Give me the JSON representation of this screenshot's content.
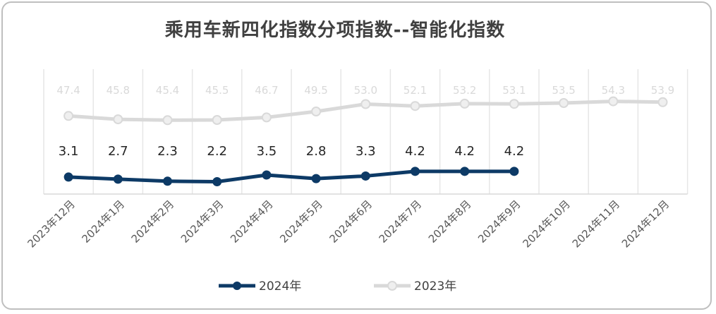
{
  "chart_data": {
    "type": "line",
    "title": "乘用车新四化指数分项指数--智能化指数",
    "categories": [
      "2023年12月",
      "2024年1月",
      "2024年2月",
      "2024年3月",
      "2024年4月",
      "2024年5月",
      "2024年6月",
      "2024年7月",
      "2024年8月",
      "2024年9月",
      "2024年10月",
      "2024年11月",
      "2024年12月"
    ],
    "series": [
      {
        "name": "2024年",
        "values": [
          3.1,
          2.7,
          2.3,
          2.2,
          3.5,
          2.8,
          3.3,
          4.2,
          4.2,
          4.2,
          null,
          null,
          null
        ],
        "color": "#0d3a66"
      },
      {
        "name": "2023年",
        "values": [
          47.4,
          45.8,
          45.4,
          45.5,
          46.7,
          49.5,
          53.0,
          52.1,
          53.2,
          53.1,
          53.5,
          54.3,
          53.9
        ],
        "color": "#d9d9d9"
      }
    ],
    "legend_position": "bottom",
    "grid": "vertical"
  }
}
